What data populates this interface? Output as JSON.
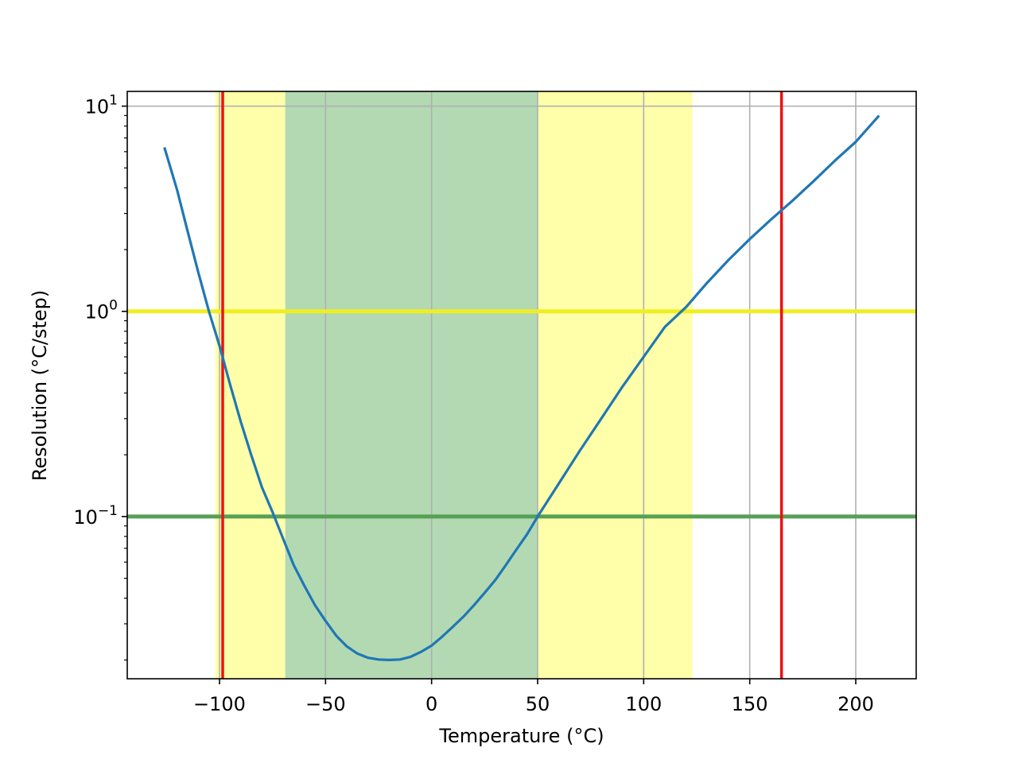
{
  "chart_data": {
    "type": "line",
    "xlabel": "Temperature (°C)",
    "ylabel": "Resolution (°C/step)",
    "xlim": [
      -143.5,
      228.5
    ],
    "ylim": [
      0.0162,
      11.8
    ],
    "y_scale": "log",
    "grid": true,
    "x_ticks": [
      {
        "value": -100,
        "label": "−100"
      },
      {
        "value": -50,
        "label": "−50"
      },
      {
        "value": 0,
        "label": "0"
      },
      {
        "value": 50,
        "label": "50"
      },
      {
        "value": 100,
        "label": "100"
      },
      {
        "value": 150,
        "label": "150"
      },
      {
        "value": 200,
        "label": "200"
      }
    ],
    "y_ticks": [
      {
        "value": 0.1,
        "base": "10",
        "exp": "−1"
      },
      {
        "value": 1,
        "base": "10",
        "exp": "0"
      },
      {
        "value": 10,
        "base": "10",
        "exp": "1"
      }
    ],
    "bands": [
      {
        "x0": -102.0,
        "x1": -69.0,
        "color": "#ffffaa"
      },
      {
        "x0": -69.0,
        "x1": 50.0,
        "color": "#b3d9b3"
      },
      {
        "x0": 50.0,
        "x1": 123.0,
        "color": "#ffffaa"
      }
    ],
    "hlines": [
      {
        "y": 1,
        "color": "#eeee22"
      },
      {
        "y": 0.1,
        "color": "#55a055"
      }
    ],
    "vlines": [
      {
        "x": -98.5,
        "color": "#ee1111"
      },
      {
        "x": 165.0,
        "color": "#ee1111"
      }
    ],
    "series": [
      {
        "color": "#1f77b4",
        "points": [
          [
            -126,
            6.3
          ],
          [
            -120,
            3.9
          ],
          [
            -115,
            2.45
          ],
          [
            -110,
            1.55
          ],
          [
            -105,
            1.0
          ],
          [
            -100,
            0.68
          ],
          [
            -95,
            0.44
          ],
          [
            -90,
            0.29
          ],
          [
            -85,
            0.199
          ],
          [
            -80,
            0.139
          ],
          [
            -75,
            0.105
          ],
          [
            -70,
            0.078
          ],
          [
            -65,
            0.058
          ],
          [
            -60,
            0.046
          ],
          [
            -55,
            0.037
          ],
          [
            -50,
            0.031
          ],
          [
            -45,
            0.0263
          ],
          [
            -40,
            0.0233
          ],
          [
            -35,
            0.0215
          ],
          [
            -30,
            0.0205
          ],
          [
            -25,
            0.0201
          ],
          [
            -20,
            0.02
          ],
          [
            -15,
            0.0201
          ],
          [
            -10,
            0.0207
          ],
          [
            -5,
            0.0219
          ],
          [
            0,
            0.0235
          ],
          [
            5,
            0.026
          ],
          [
            10,
            0.029
          ],
          [
            15,
            0.0325
          ],
          [
            20,
            0.037
          ],
          [
            25,
            0.0425
          ],
          [
            30,
            0.049
          ],
          [
            35,
            0.058
          ],
          [
            40,
            0.069
          ],
          [
            45,
            0.082
          ],
          [
            50,
            0.1
          ],
          [
            60,
            0.145
          ],
          [
            70,
            0.21
          ],
          [
            80,
            0.3
          ],
          [
            90,
            0.43
          ],
          [
            100,
            0.6
          ],
          [
            110,
            0.84
          ],
          [
            120,
            1.05
          ],
          [
            130,
            1.38
          ],
          [
            140,
            1.78
          ],
          [
            150,
            2.25
          ],
          [
            160,
            2.8
          ],
          [
            170,
            3.45
          ],
          [
            180,
            4.3
          ],
          [
            190,
            5.4
          ],
          [
            200,
            6.7
          ],
          [
            211,
            9.0
          ]
        ]
      }
    ]
  }
}
